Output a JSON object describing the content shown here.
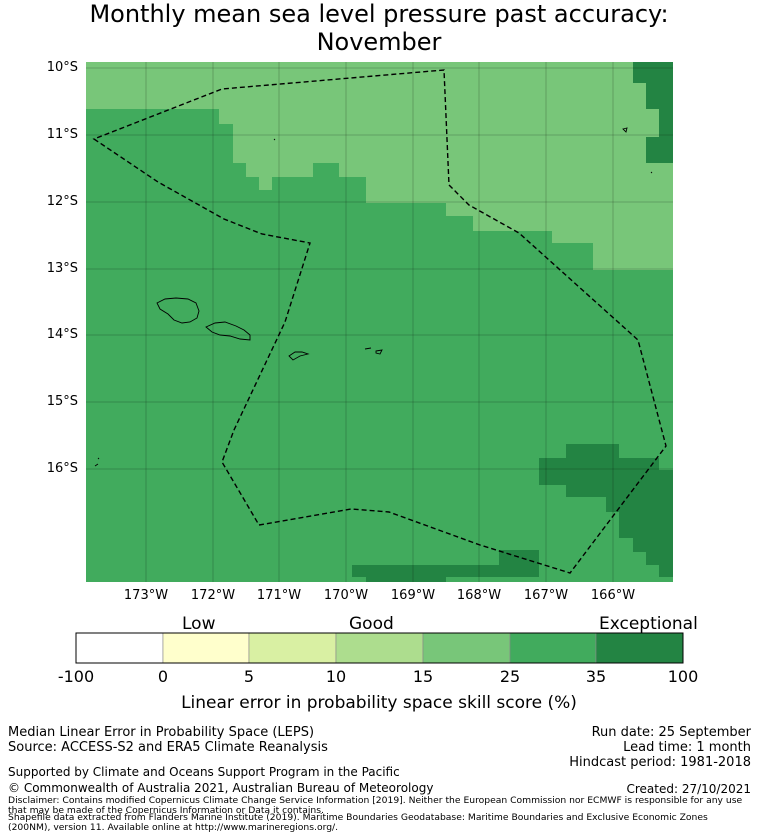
{
  "title_line1": "Monthly mean sea level pressure past accuracy:",
  "title_line2": "November",
  "y_ticks": [
    "10°S",
    "11°S",
    "12°S",
    "13°S",
    "14°S",
    "15°S",
    "16°S"
  ],
  "x_ticks": [
    "173°W",
    "172°W",
    "171°W",
    "170°W",
    "169°W",
    "168°W",
    "167°W",
    "166°W"
  ],
  "colorbar": {
    "category_labels": [
      "Low",
      "Good",
      "Exceptional"
    ],
    "tick_labels": [
      "-100",
      "0",
      "5",
      "10",
      "15",
      "25",
      "35",
      "100"
    ],
    "colors": [
      "#ffffff",
      "#ffffcc",
      "#d9f0a3",
      "#addd8e",
      "#78c679",
      "#41ab5d",
      "#238443"
    ],
    "title": "Linear error in probability space skill score (%)"
  },
  "map_colors": {
    "light": "#78c679",
    "medium": "#41ab5d",
    "dark": "#238443"
  },
  "footer": {
    "metric": "Median Linear Error in Probability Space (LEPS)",
    "source": "Source: ACCESS-S2 and ERA5 Climate Reanalysis",
    "support": "Supported by Climate and Oceans Support Program in the Pacific",
    "copyright": "© Commonwealth of Australia 2021, Australian Bureau of Meteorology",
    "run_date": "Run date: 25 September",
    "lead_time": "Lead time: 1 month",
    "hindcast": "Hindcast period: 1981-2018",
    "created": "Created: 27/10/2021",
    "disclaimer": "Disclaimer: Contains modified Copernicus Climate Change Service Information [2019]. Neither the European Commission nor ECMWF is responsible for any use that may be made of the Copernicus Information or Data it contains.",
    "shapefile": "Shapefile data extracted from Flanders Marine Institute (2019). Maritime Boundaries Geodatabase: Maritime Boundaries and Exclusive Economic Zones (200NM), version 11. Available online at http://www.marineregions.org/."
  }
}
